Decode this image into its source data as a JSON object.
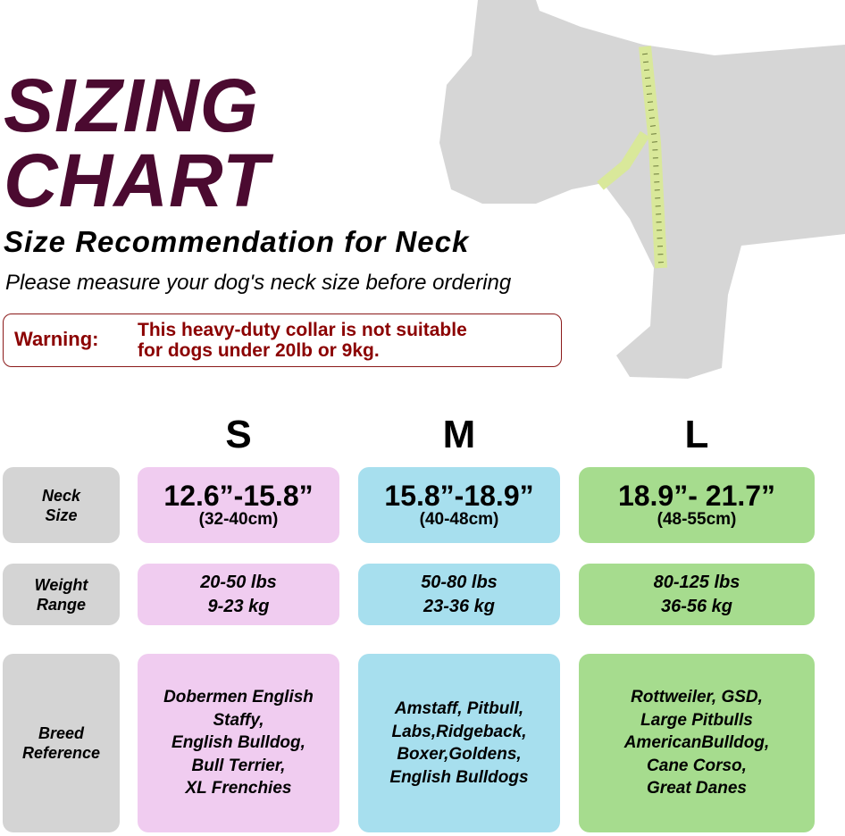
{
  "title": {
    "line1": "SIZING",
    "line2": "CHART"
  },
  "subtitle": "Size Recommendation for Neck",
  "instruction": "Please measure your dog's neck size before ordering",
  "warning": {
    "label": "Warning:",
    "line1": "This heavy-duty collar is not suitable",
    "line2": "for dogs under 20lb or 9kg."
  },
  "colors": {
    "title": "#4b0a30",
    "warning": "#8b0000",
    "label_bg": "#d4d4d4",
    "s_bg": "#f0ccf0",
    "m_bg": "#a7dfee",
    "l_bg": "#a6dc8e",
    "dog": "#d6d6d6",
    "tape": "#d9e89a"
  },
  "sizes": [
    "S",
    "M",
    "L"
  ],
  "row_labels": {
    "neck": [
      "Neck",
      "Size"
    ],
    "weight": [
      "Weight",
      "Range"
    ],
    "breed": [
      "Breed",
      "Reference"
    ]
  },
  "neck": [
    {
      "in": "12.6”-15.8”",
      "cm": "(32-40cm)"
    },
    {
      "in": "15.8”-18.9”",
      "cm": "(40-48cm)"
    },
    {
      "in": "18.9”- 21.7”",
      "cm": "(48-55cm)"
    }
  ],
  "weight": [
    {
      "lbs": "20-50 lbs",
      "kg": "9-23 kg"
    },
    {
      "lbs": "50-80 lbs",
      "kg": "23-36 kg"
    },
    {
      "lbs": "80-125 lbs",
      "kg": "36-56 kg"
    }
  ],
  "breeds": [
    [
      "Dobermen English",
      "Staffy,",
      "English Bulldog,",
      "Bull Terrier,",
      "XL Frenchies"
    ],
    [
      "Amstaff, Pitbull,",
      "Labs,Ridgeback,",
      "Boxer,Goldens,",
      "English Bulldogs"
    ],
    [
      "Rottweiler, GSD,",
      "Large Pitbulls",
      "AmericanBulldog,",
      "Cane Corso,",
      "Great Danes"
    ]
  ]
}
